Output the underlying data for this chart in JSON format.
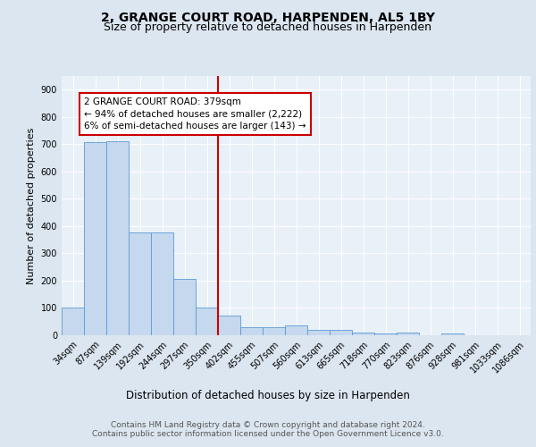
{
  "title1": "2, GRANGE COURT ROAD, HARPENDEN, AL5 1BY",
  "title2": "Size of property relative to detached houses in Harpenden",
  "xlabel": "Distribution of detached houses by size in Harpenden",
  "ylabel": "Number of detached properties",
  "categories": [
    "34sqm",
    "87sqm",
    "139sqm",
    "192sqm",
    "244sqm",
    "297sqm",
    "350sqm",
    "402sqm",
    "455sqm",
    "507sqm",
    "560sqm",
    "613sqm",
    "665sqm",
    "718sqm",
    "770sqm",
    "823sqm",
    "876sqm",
    "928sqm",
    "981sqm",
    "1033sqm",
    "1086sqm"
  ],
  "values": [
    100,
    707,
    710,
    378,
    378,
    205,
    100,
    71,
    30,
    30,
    35,
    20,
    20,
    10,
    8,
    10,
    0,
    8,
    0,
    0,
    0
  ],
  "bar_color": "#c5d8ed",
  "bar_edge_color": "#5b9bd5",
  "property_line_color": "#cc0000",
  "property_line_bin": 6.5,
  "annotation_text": "2 GRANGE COURT ROAD: 379sqm\n← 94% of detached houses are smaller (2,222)\n6% of semi-detached houses are larger (143) →",
  "annotation_box_color": "#cc0000",
  "annotation_bg": "#ffffff",
  "ylim": [
    0,
    950
  ],
  "yticks": [
    0,
    100,
    200,
    300,
    400,
    500,
    600,
    700,
    800,
    900
  ],
  "bg_color": "#dce6f0",
  "plot_bg_color": "#e8f0f8",
  "grid_color": "#ffffff",
  "footer1": "Contains HM Land Registry data © Crown copyright and database right 2024.",
  "footer2": "Contains public sector information licensed under the Open Government Licence v3.0.",
  "title1_fontsize": 10,
  "title2_fontsize": 9,
  "xlabel_fontsize": 8.5,
  "ylabel_fontsize": 8,
  "tick_fontsize": 7,
  "footer_fontsize": 6.5,
  "ann_fontsize": 7.5
}
